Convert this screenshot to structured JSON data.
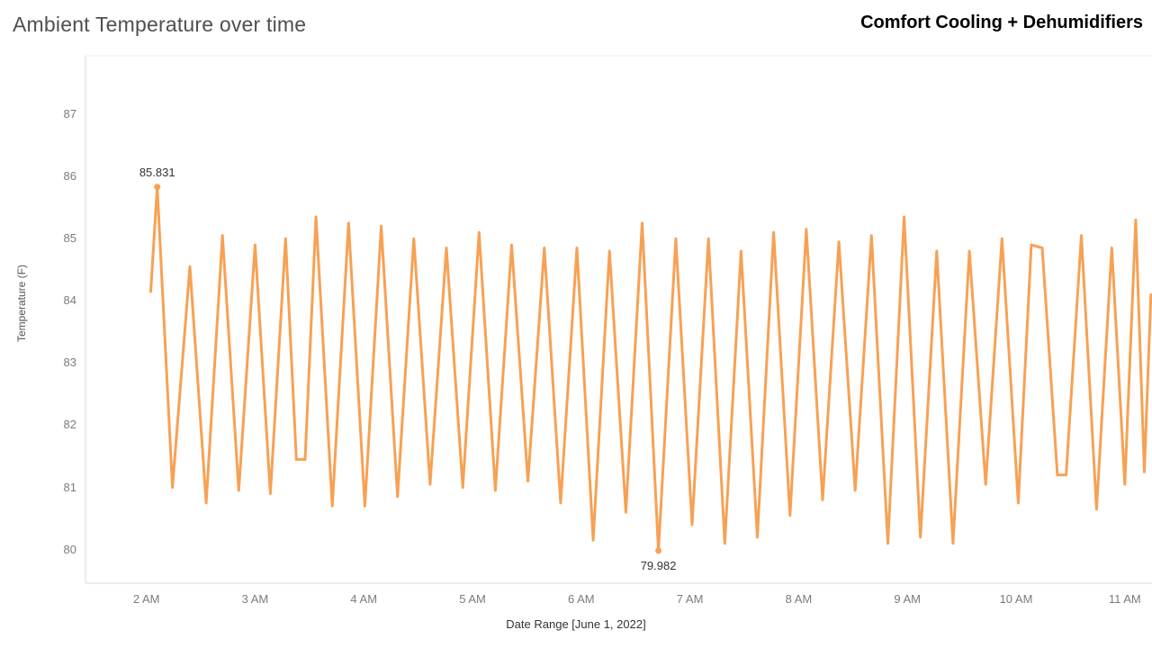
{
  "header": {
    "title": "Ambient Temperature over time",
    "right_label": "Comfort Cooling + Dehumidifiers"
  },
  "colors": {
    "line": "#F7A154",
    "axis": "#d9d9d9",
    "top_border": "#ececec"
  },
  "chart_data": {
    "type": "line",
    "title": "Ambient Temperature over time",
    "xlabel": "Date Range [June 1, 2022]",
    "ylabel": "Temperature (F)",
    "xlim": [
      1.44,
      11.25
    ],
    "ylim": [
      79.46,
      87.94
    ],
    "grid": false,
    "legend": false,
    "x_ticks": [
      {
        "value": 2,
        "label": "2 AM"
      },
      {
        "value": 3,
        "label": "3 AM"
      },
      {
        "value": 4,
        "label": "4 AM"
      },
      {
        "value": 5,
        "label": "5 AM"
      },
      {
        "value": 6,
        "label": "6 AM"
      },
      {
        "value": 7,
        "label": "7 AM"
      },
      {
        "value": 8,
        "label": "8 AM"
      },
      {
        "value": 9,
        "label": "9 AM"
      },
      {
        "value": 10,
        "label": "10 AM"
      },
      {
        "value": 11,
        "label": "11 AM"
      }
    ],
    "y_ticks": [
      {
        "value": 80,
        "label": "80"
      },
      {
        "value": 81,
        "label": "81"
      },
      {
        "value": 82,
        "label": "82"
      },
      {
        "value": 83,
        "label": "83"
      },
      {
        "value": 84,
        "label": "84"
      },
      {
        "value": 85,
        "label": "85"
      },
      {
        "value": 86,
        "label": "86"
      },
      {
        "value": 87,
        "label": "87"
      }
    ],
    "points": [
      [
        2.04,
        84.15
      ],
      [
        2.1,
        85.831
      ],
      [
        2.24,
        81.0
      ],
      [
        2.4,
        84.55
      ],
      [
        2.55,
        80.75
      ],
      [
        2.7,
        85.05
      ],
      [
        2.85,
        80.95
      ],
      [
        3.0,
        84.9
      ],
      [
        3.14,
        80.9
      ],
      [
        3.28,
        85.0
      ],
      [
        3.38,
        81.45
      ],
      [
        3.46,
        81.45
      ],
      [
        3.56,
        85.35
      ],
      [
        3.71,
        80.7
      ],
      [
        3.86,
        85.25
      ],
      [
        4.01,
        80.7
      ],
      [
        4.16,
        85.2
      ],
      [
        4.31,
        80.85
      ],
      [
        4.46,
        85.0
      ],
      [
        4.61,
        81.05
      ],
      [
        4.76,
        84.85
      ],
      [
        4.91,
        81.0
      ],
      [
        5.06,
        85.1
      ],
      [
        5.21,
        80.95
      ],
      [
        5.36,
        84.9
      ],
      [
        5.51,
        81.1
      ],
      [
        5.66,
        84.85
      ],
      [
        5.81,
        80.75
      ],
      [
        5.96,
        84.85
      ],
      [
        6.11,
        80.15
      ],
      [
        6.26,
        84.8
      ],
      [
        6.41,
        80.6
      ],
      [
        6.56,
        85.25
      ],
      [
        6.71,
        79.982
      ],
      [
        6.87,
        85.0
      ],
      [
        7.02,
        80.4
      ],
      [
        7.17,
        85.0
      ],
      [
        7.32,
        80.1
      ],
      [
        7.47,
        84.8
      ],
      [
        7.62,
        80.2
      ],
      [
        7.77,
        85.1
      ],
      [
        7.92,
        80.55
      ],
      [
        8.07,
        85.15
      ],
      [
        8.22,
        80.8
      ],
      [
        8.37,
        84.95
      ],
      [
        8.52,
        80.95
      ],
      [
        8.67,
        85.05
      ],
      [
        8.82,
        80.1
      ],
      [
        8.97,
        85.35
      ],
      [
        9.12,
        80.2
      ],
      [
        9.27,
        84.8
      ],
      [
        9.42,
        80.1
      ],
      [
        9.57,
        84.8
      ],
      [
        9.72,
        81.05
      ],
      [
        9.87,
        85.0
      ],
      [
        10.02,
        80.75
      ],
      [
        10.14,
        84.9
      ],
      [
        10.24,
        84.85
      ],
      [
        10.38,
        81.2
      ],
      [
        10.46,
        81.2
      ],
      [
        10.6,
        85.05
      ],
      [
        10.74,
        80.65
      ],
      [
        10.88,
        84.85
      ],
      [
        11.0,
        81.05
      ],
      [
        11.1,
        85.3
      ],
      [
        11.18,
        81.25
      ],
      [
        11.24,
        84.1
      ]
    ],
    "annotations": [
      {
        "x": 2.1,
        "y": 85.831,
        "label": "85.831",
        "position": "above"
      },
      {
        "x": 6.71,
        "y": 79.982,
        "label": "79.982",
        "position": "below"
      }
    ]
  }
}
